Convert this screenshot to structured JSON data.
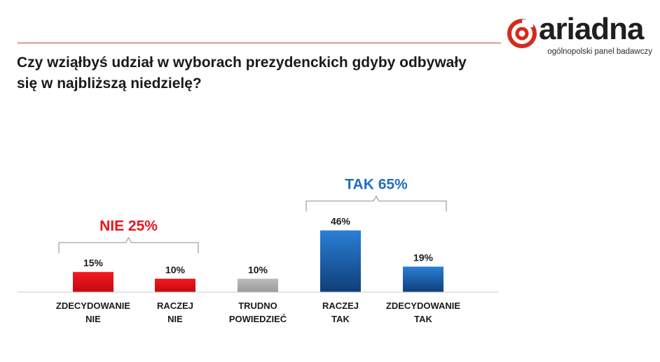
{
  "header": {
    "question": "Czy wziąłbyś udział w wyborach prezydenckich gdyby odbywały się w najbliższą niedzielę?"
  },
  "logo": {
    "name": "ariadna",
    "tagline": "ogólnopolski panel badawczy"
  },
  "colors": {
    "accent_red": "#e8151c",
    "accent_blue": "#1f6fbf",
    "neutral_gray": "#ababab",
    "rule": "#b9463c"
  },
  "chart_data": {
    "type": "bar",
    "title": "",
    "xlabel": "",
    "ylabel": "",
    "ylim": [
      0,
      50
    ],
    "categories": [
      [
        "ZDECYDOWANIE",
        "NIE"
      ],
      [
        "RACZEJ",
        "NIE"
      ],
      [
        "TRUDNO",
        "POWIEDZIEĆ"
      ],
      [
        "RACZEJ",
        "TAK"
      ],
      [
        "ZDECYDOWANIE",
        "TAK"
      ]
    ],
    "values": [
      15,
      10,
      10,
      46,
      19
    ],
    "value_labels": [
      "15%",
      "10%",
      "10%",
      "46%",
      "19%"
    ],
    "bar_colors": [
      "red",
      "red",
      "gray",
      "blue",
      "blue"
    ],
    "groups": [
      {
        "label": "NIE 25%",
        "color": "red",
        "bars": [
          0,
          1
        ]
      },
      {
        "label": "TAK 65%",
        "color": "blue",
        "bars": [
          3,
          4
        ]
      }
    ]
  }
}
